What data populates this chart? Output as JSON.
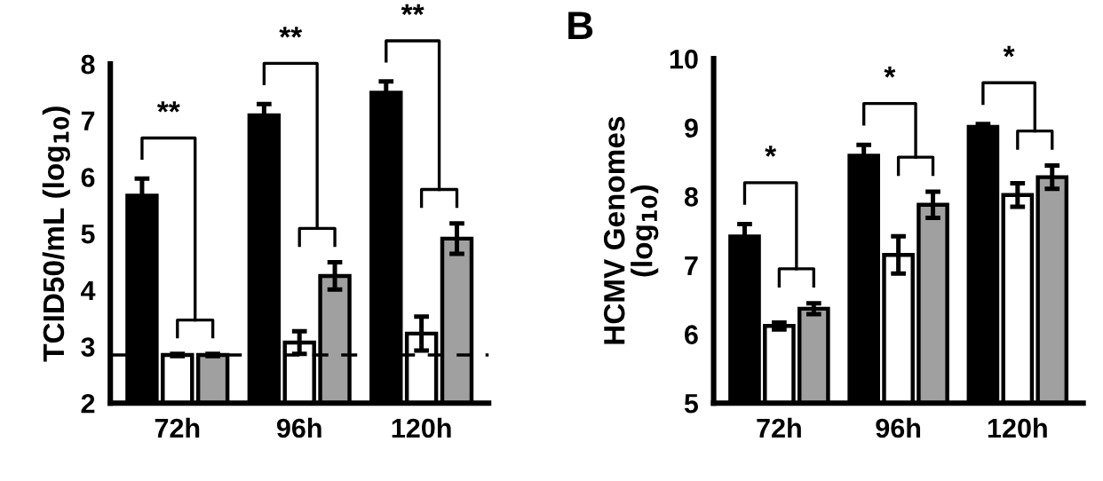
{
  "chart_data": [
    {
      "type": "bar",
      "ylabel": "TCID50/mL (log$_{10}$)",
      "categories": [
        "72h",
        "96h",
        "120h"
      ],
      "series": [
        {
          "color": "#000000",
          "values": [
            5.67,
            7.09,
            7.49
          ],
          "errors": [
            0.3,
            0.2,
            0.2
          ]
        },
        {
          "color": "#ffffff",
          "values": [
            2.85,
            3.07,
            3.23
          ],
          "errors": [
            0.02,
            0.2,
            0.3
          ]
        },
        {
          "color": "#a0a0a0",
          "values": [
            2.85,
            4.25,
            4.91
          ],
          "errors": [
            0.02,
            0.24,
            0.27
          ]
        }
      ],
      "ylim": [
        2,
        8
      ],
      "yticks": [
        2,
        3,
        4,
        5,
        6,
        7,
        8
      ],
      "grid": false,
      "legend": false,
      "ref_lines": [
        {
          "axis": "y",
          "value": 2.85,
          "color": "#000000",
          "line_style": "dashed"
        }
      ],
      "annotations": [
        "**",
        "**",
        "**"
      ]
    },
    {
      "type": "bar",
      "ylabel": "HCMV Genomes\n(log$_{10}$)",
      "categories": [
        "72h",
        "96h",
        "120h"
      ],
      "series": [
        {
          "color": "#000000",
          "values": [
            7.42,
            8.59,
            9.01
          ],
          "errors": [
            0.18,
            0.16,
            0.04
          ]
        },
        {
          "color": "#ffffff",
          "values": [
            6.12,
            7.15,
            8.02
          ],
          "errors": [
            0.05,
            0.27,
            0.17
          ]
        },
        {
          "color": "#a0a0a0",
          "values": [
            6.37,
            7.88,
            8.28
          ],
          "errors": [
            0.08,
            0.19,
            0.17
          ]
        }
      ],
      "ylim": [
        5,
        10
      ],
      "yticks": [
        5,
        6,
        7,
        8,
        9,
        10
      ],
      "grid": false,
      "legend": false,
      "title": "B",
      "annotations": [
        "*",
        "*",
        "*"
      ]
    }
  ]
}
